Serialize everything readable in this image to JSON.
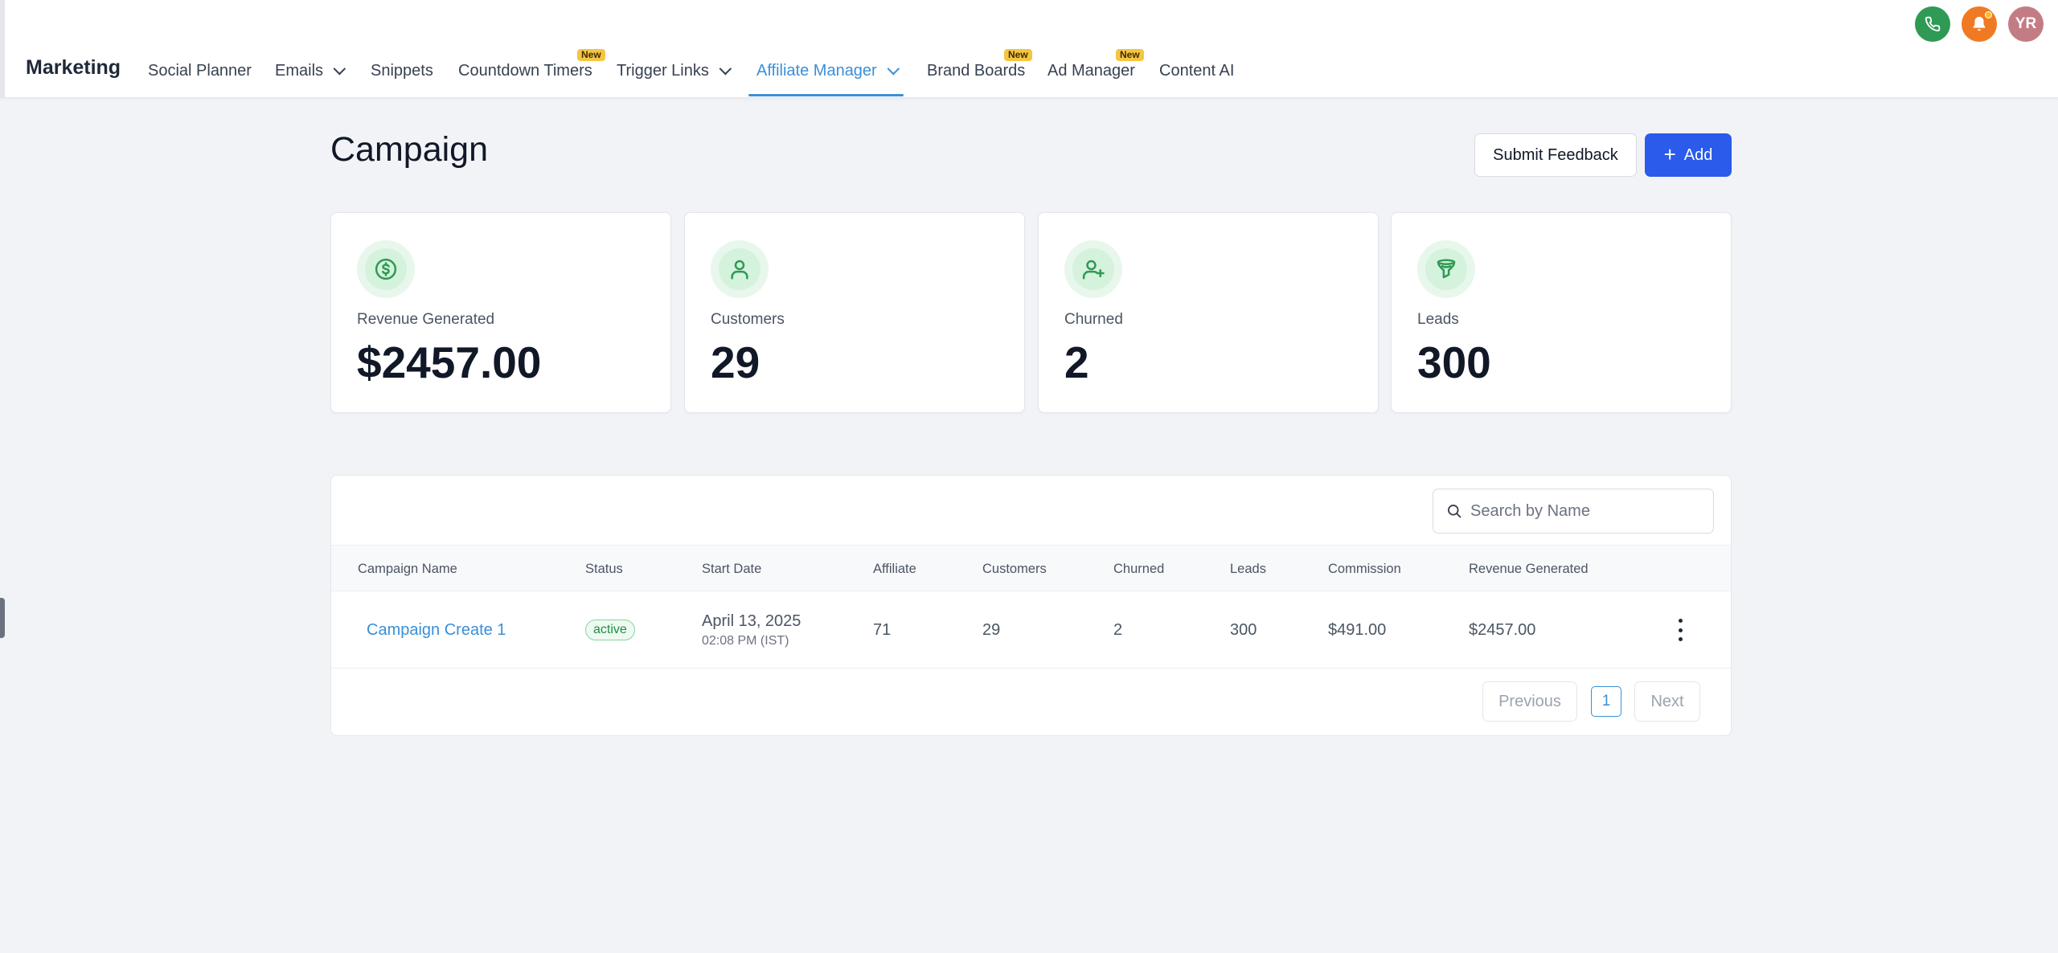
{
  "app": {
    "title": "Marketing"
  },
  "nav": {
    "items": [
      {
        "label": "Social Planner"
      },
      {
        "label": "Emails"
      },
      {
        "label": "Snippets"
      },
      {
        "label": "Countdown Timers",
        "badge": "New"
      },
      {
        "label": "Trigger Links"
      },
      {
        "label": "Affiliate Manager",
        "active": true
      },
      {
        "label": "Brand Boards",
        "badge": "New"
      },
      {
        "label": "Ad Manager",
        "badge": "New"
      },
      {
        "label": "Content AI"
      }
    ]
  },
  "header_actions": {
    "avatar_initials": "YR",
    "icons": [
      "phone-icon",
      "bell-icon"
    ],
    "colors": {
      "phone": "#2f9a54",
      "bell": "#f07a23",
      "avatar": "#c47c84"
    }
  },
  "page": {
    "title": "Campaign",
    "feedback_label": "Submit Feedback",
    "add_label": "Add"
  },
  "stats": [
    {
      "label": "Revenue Generated",
      "value": "$2457.00",
      "icon": "dollar-icon"
    },
    {
      "label": "Customers",
      "value": "29",
      "icon": "user-icon"
    },
    {
      "label": "Churned",
      "value": "2",
      "icon": "user-plus-icon"
    },
    {
      "label": "Leads",
      "value": "300",
      "icon": "funnel-icon"
    }
  ],
  "table": {
    "search_placeholder": "Search by Name",
    "columns": [
      "Campaign Name",
      "Status",
      "Start Date",
      "Affiliate",
      "Customers",
      "Churned",
      "Leads",
      "Commission",
      "Revenue Generated"
    ],
    "rows": [
      {
        "name": "Campaign Create 1",
        "status": "active",
        "start_date": "April 13, 2025",
        "start_time": "02:08 PM (IST)",
        "affiliate": "71",
        "customers": "29",
        "churned": "2",
        "leads": "300",
        "commission": "$491.00",
        "revenue": "$2457.00"
      }
    ]
  },
  "pagination": {
    "previous": "Previous",
    "page": "1",
    "next": "Next"
  },
  "colors": {
    "primary": "#2a5bea",
    "link": "#3a8fd8",
    "badge": "#f5c542",
    "success": "#218c44"
  }
}
